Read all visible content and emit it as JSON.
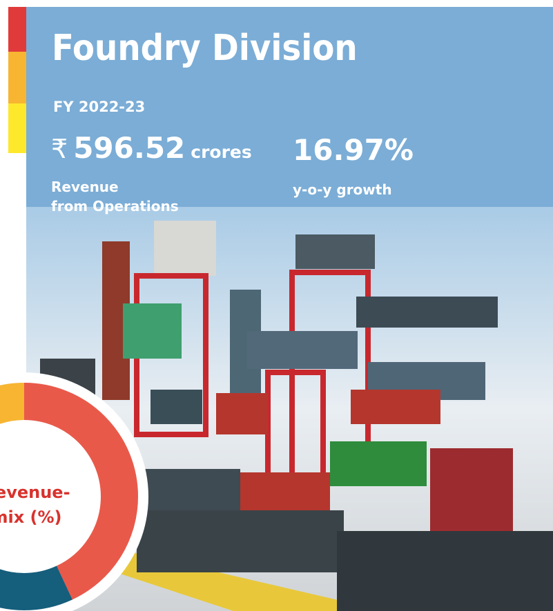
{
  "header": {
    "title": "Foundry Division",
    "period": "FY 2022-23"
  },
  "metrics": [
    {
      "currency": "₹",
      "value": "596.52",
      "unit": "crores",
      "label_line1": "Revenue",
      "label_line2": "from Operations"
    },
    {
      "value": "16.97%",
      "label": "y-o-y growth"
    }
  ],
  "donut": {
    "label_line1": "Revenue-",
    "label_line2": "mix (%)"
  }
}
